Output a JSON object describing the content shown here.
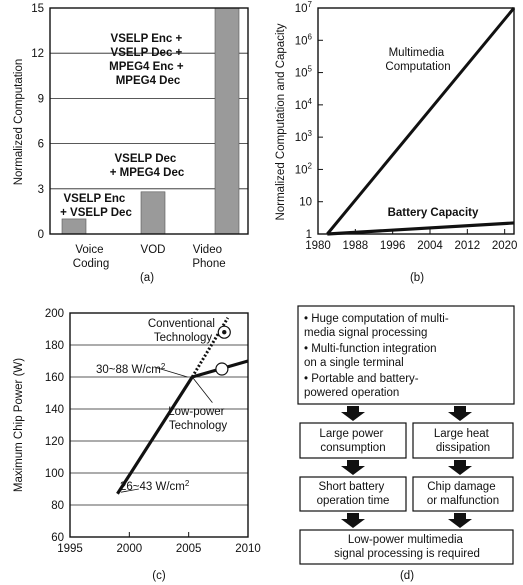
{
  "chart_data": [
    {
      "type": "bar",
      "panel_label": "(a)",
      "ylabel": "Normalized Computation",
      "yticks": [
        "0",
        "3",
        "6",
        "9",
        "12",
        "15"
      ],
      "ylim": [
        0,
        15
      ],
      "grid": true,
      "categories": [
        {
          "line1": "Voice",
          "line2": "Coding"
        },
        {
          "line1": "VOD",
          "line2": ""
        },
        {
          "line1": "Video",
          "line2": "Phone"
        }
      ],
      "values": [
        1,
        2.8,
        15.5
      ],
      "bar_color": "#9a9a9a",
      "annotations": [
        {
          "lines": [
            "VSELP Enc",
            "+ VSELP Dec"
          ]
        },
        {
          "lines": [
            "VSELP Dec",
            "+ MPEG4 Dec"
          ]
        },
        {
          "lines": [
            "VSELP Enc +",
            "VSELP Dec +",
            "MPEG4 Enc +",
            "MPEG4 Dec"
          ]
        }
      ]
    },
    {
      "type": "line",
      "panel_label": "(b)",
      "ylabel": "Normalized Computation and Capacity",
      "yscale": "log",
      "ylim": [
        1,
        10000000
      ],
      "ytick_values": [
        1,
        10,
        100,
        1000,
        10000,
        100000,
        1000000,
        10000000
      ],
      "yticks": [
        {
          "base": "1",
          "exp": ""
        },
        {
          "base": "10",
          "exp": ""
        },
        {
          "base": "10",
          "exp": "2"
        },
        {
          "base": "10",
          "exp": "3"
        },
        {
          "base": "10",
          "exp": "4"
        },
        {
          "base": "10",
          "exp": "5"
        },
        {
          "base": "10",
          "exp": "6"
        },
        {
          "base": "10",
          "exp": "7"
        }
      ],
      "xlim": [
        1980,
        2022
      ],
      "xtick_values": [
        1980,
        1988,
        1996,
        2004,
        2012,
        2020
      ],
      "xticks": [
        "1980",
        "1988",
        "1996",
        "2004",
        "2012",
        "2020"
      ],
      "series": [
        {
          "name": "Multimedia Computation",
          "x": [
            1982,
            2022
          ],
          "y": [
            1,
            10000000
          ]
        },
        {
          "name": "Battery Capacity",
          "x": [
            1982,
            2022
          ],
          "y": [
            1,
            2.2
          ]
        }
      ]
    },
    {
      "type": "line",
      "panel_label": "(c)",
      "ylabel": "Maximum Chip Power (W)",
      "xlim": [
        1995,
        2010
      ],
      "ylim": [
        60,
        200
      ],
      "xtick_values": [
        1995,
        2000,
        2005,
        2010
      ],
      "xticks": [
        "1995",
        "2000",
        "2005",
        "2010"
      ],
      "ytick_values": [
        60,
        80,
        100,
        120,
        140,
        160,
        180,
        200
      ],
      "yticks": [
        "60",
        "80",
        "100",
        "120",
        "140",
        "160",
        "180",
        "200"
      ],
      "grid": true,
      "series": [
        {
          "name": "main",
          "x": [
            1999,
            2005.3
          ],
          "y": [
            87,
            160
          ],
          "style": "solid"
        },
        {
          "name": "Conventional Technology",
          "x": [
            2005.3,
            2008.3
          ],
          "y": [
            160,
            197
          ],
          "style": "dotted"
        },
        {
          "name": "Low-power Technology",
          "x": [
            2005.3,
            2010
          ],
          "y": [
            160,
            170
          ],
          "style": "solid"
        }
      ],
      "labels": {
        "conventional": [
          "Conventional",
          "Technology"
        ],
        "lowpower": [
          "Low-power",
          "Technology"
        ],
        "density_high": {
          "text": "30~88 W/cm",
          "sup": "2"
        },
        "density_low": {
          "text": "26~43 W/cm",
          "sup": "2"
        }
      }
    }
  ],
  "flow": {
    "panel_label": "(d)",
    "bullets": [
      [
        "• Huge computation of multi-",
        "  media signal processing"
      ],
      [
        "• Multi-function integration",
        "  on a single terminal"
      ],
      [
        "• Portable and battery-",
        "  powered operation"
      ]
    ],
    "left_box1": [
      "Large power",
      "consumption"
    ],
    "right_box1": [
      "Large heat",
      "dissipation"
    ],
    "left_box2": [
      "Short battery",
      "operation time"
    ],
    "right_box2": [
      "Chip damage",
      "or malfunction"
    ],
    "final_box": [
      "Low-power multimedia",
      "signal processing is required"
    ]
  }
}
